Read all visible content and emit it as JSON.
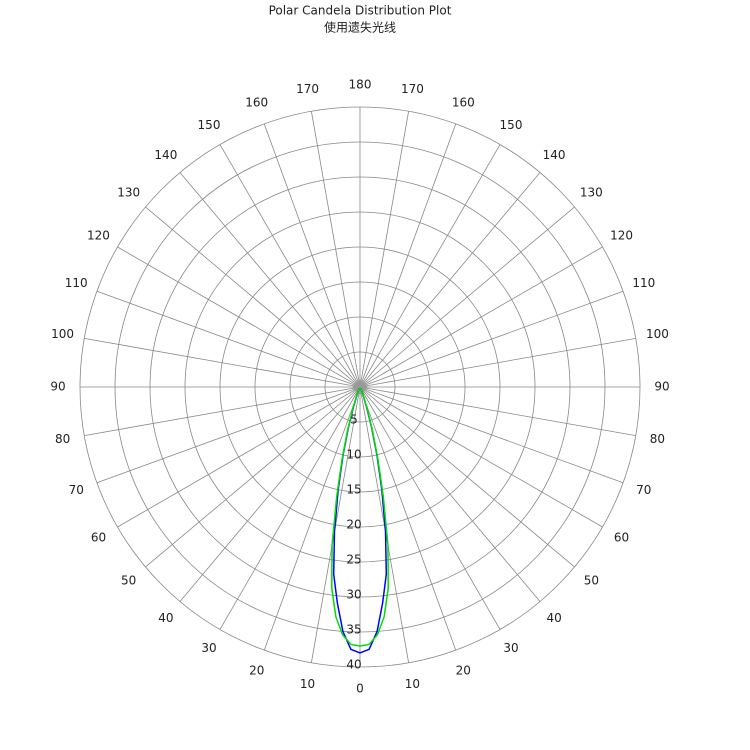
{
  "chart_data": {
    "type": "polar",
    "title": "Polar Candela Distribution Plot",
    "subtitle": "使用遗失光线",
    "angle_ticks": [
      0,
      10,
      20,
      30,
      40,
      50,
      60,
      70,
      80,
      90,
      100,
      110,
      120,
      130,
      140,
      150,
      160,
      170,
      180
    ],
    "rlim": [
      0,
      40
    ],
    "rticks": [
      5,
      10,
      15,
      20,
      25,
      30,
      35,
      40
    ],
    "grid": true,
    "series": [
      {
        "color": "#0000ff",
        "x": [
          -30,
          -25,
          -20,
          -18,
          -16,
          -14,
          -12,
          -10,
          -8,
          -6,
          -4,
          -2,
          0,
          2,
          4,
          6,
          8,
          10,
          12,
          14,
          16,
          18,
          20,
          25,
          30
        ],
        "values": [
          0.2,
          0.5,
          1.5,
          3,
          6,
          10,
          15,
          21,
          27,
          31,
          35,
          37.5,
          38,
          37.5,
          35,
          31,
          27,
          21,
          15,
          10,
          6,
          3,
          1.5,
          0.5,
          0.2
        ]
      },
      {
        "color": "#00dd00",
        "x": [
          -30,
          -25,
          -20,
          -18,
          -16,
          -14,
          -12,
          -10,
          -8,
          -6,
          -4,
          -2,
          0,
          2,
          4,
          6,
          8,
          10,
          12,
          14,
          16,
          18,
          20,
          25,
          30
        ],
        "values": [
          0.2,
          0.6,
          1.8,
          3.5,
          6.5,
          10.5,
          16,
          23,
          29,
          33,
          35.5,
          36.8,
          37,
          36.8,
          35.5,
          33,
          29,
          23,
          16,
          10.5,
          6.5,
          3.5,
          1.8,
          0.6,
          0.2
        ]
      }
    ]
  }
}
